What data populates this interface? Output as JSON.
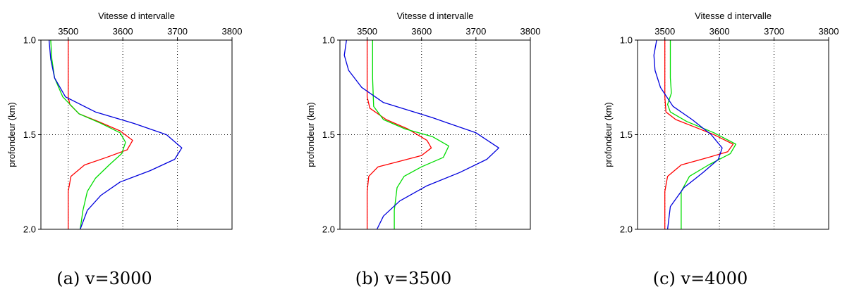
{
  "chart_data": [
    {
      "type": "line",
      "title": "Vitesse d intervalle",
      "ylabel": "profondeur (km)",
      "caption": "(a) v=3000",
      "xlim": [
        3450,
        3800
      ],
      "ylim": [
        1.0,
        2.0
      ],
      "x_ticks": [
        "3500",
        "3600",
        "3700",
        "3800"
      ],
      "y_ticks": [
        "1.0",
        "1.5",
        "2.0"
      ],
      "grid": "dotted",
      "series": [
        {
          "color": "#ff0000",
          "points": [
            [
              3500,
              1.0
            ],
            [
              3500,
              1.3
            ],
            [
              3503,
              1.34
            ],
            [
              3520,
              1.39
            ],
            [
              3555,
              1.43
            ],
            [
              3595,
              1.48
            ],
            [
              3618,
              1.53
            ],
            [
              3608,
              1.58
            ],
            [
              3570,
              1.62
            ],
            [
              3530,
              1.66
            ],
            [
              3505,
              1.72
            ],
            [
              3500,
              1.8
            ],
            [
              3500,
              2.0
            ]
          ]
        },
        {
          "color": "#00dd00",
          "points": [
            [
              3468,
              1.0
            ],
            [
              3470,
              1.1
            ],
            [
              3475,
              1.2
            ],
            [
              3490,
              1.3
            ],
            [
              3520,
              1.39
            ],
            [
              3560,
              1.44
            ],
            [
              3595,
              1.49
            ],
            [
              3605,
              1.54
            ],
            [
              3598,
              1.6
            ],
            [
              3575,
              1.66
            ],
            [
              3550,
              1.73
            ],
            [
              3535,
              1.8
            ],
            [
              3527,
              1.9
            ],
            [
              3522,
              2.0
            ]
          ]
        },
        {
          "color": "#0000dd",
          "points": [
            [
              3465,
              1.0
            ],
            [
              3468,
              1.1
            ],
            [
              3475,
              1.2
            ],
            [
              3495,
              1.3
            ],
            [
              3550,
              1.38
            ],
            [
              3620,
              1.44
            ],
            [
              3680,
              1.5
            ],
            [
              3708,
              1.57
            ],
            [
              3695,
              1.63
            ],
            [
              3650,
              1.69
            ],
            [
              3595,
              1.75
            ],
            [
              3560,
              1.82
            ],
            [
              3535,
              1.9
            ],
            [
              3522,
              2.0
            ]
          ]
        }
      ]
    },
    {
      "type": "line",
      "title": "Vitesse d intervalle",
      "ylabel": "profondeur (km)",
      "caption": "(b) v=3500",
      "xlim": [
        3450,
        3800
      ],
      "ylim": [
        1.0,
        2.0
      ],
      "x_ticks": [
        "3500",
        "3600",
        "3700",
        "3800"
      ],
      "y_ticks": [
        "1.0",
        "1.5",
        "2.0"
      ],
      "grid": "dotted",
      "series": [
        {
          "color": "#ff0000",
          "points": [
            [
              3500,
              1.0
            ],
            [
              3500,
              1.3
            ],
            [
              3505,
              1.36
            ],
            [
              3535,
              1.42
            ],
            [
              3575,
              1.47
            ],
            [
              3610,
              1.53
            ],
            [
              3618,
              1.57
            ],
            [
              3600,
              1.61
            ],
            [
              3560,
              1.64
            ],
            [
              3520,
              1.67
            ],
            [
              3503,
              1.72
            ],
            [
              3500,
              1.8
            ],
            [
              3500,
              2.0
            ]
          ]
        },
        {
          "color": "#00dd00",
          "points": [
            [
              3510,
              1.0
            ],
            [
              3510,
              1.2
            ],
            [
              3512,
              1.35
            ],
            [
              3530,
              1.42
            ],
            [
              3570,
              1.47
            ],
            [
              3620,
              1.51
            ],
            [
              3650,
              1.56
            ],
            [
              3640,
              1.62
            ],
            [
              3600,
              1.67
            ],
            [
              3568,
              1.72
            ],
            [
              3555,
              1.78
            ],
            [
              3550,
              1.9
            ],
            [
              3550,
              2.0
            ]
          ]
        },
        {
          "color": "#0000dd",
          "points": [
            [
              3462,
              1.0
            ],
            [
              3458,
              1.08
            ],
            [
              3466,
              1.16
            ],
            [
              3490,
              1.25
            ],
            [
              3530,
              1.33
            ],
            [
              3620,
              1.41
            ],
            [
              3700,
              1.49
            ],
            [
              3742,
              1.57
            ],
            [
              3720,
              1.63
            ],
            [
              3670,
              1.7
            ],
            [
              3610,
              1.77
            ],
            [
              3560,
              1.85
            ],
            [
              3530,
              1.93
            ],
            [
              3518,
              2.0
            ]
          ]
        }
      ]
    },
    {
      "type": "line",
      "title": "Vitesse d intervalle",
      "ylabel": "profondeur (km)",
      "caption": "(c) v=4000",
      "xlim": [
        3450,
        3800
      ],
      "ylim": [
        1.0,
        2.0
      ],
      "x_ticks": [
        "3500",
        "3600",
        "3700",
        "3800"
      ],
      "y_ticks": [
        "1.0",
        "1.5",
        "2.0"
      ],
      "grid": "dotted",
      "series": [
        {
          "color": "#ff0000",
          "points": [
            [
              3500,
              1.0
            ],
            [
              3500,
              1.3
            ],
            [
              3502,
              1.38
            ],
            [
              3520,
              1.42
            ],
            [
              3555,
              1.46
            ],
            [
              3590,
              1.5
            ],
            [
              3625,
              1.55
            ],
            [
              3615,
              1.59
            ],
            [
              3580,
              1.62
            ],
            [
              3530,
              1.66
            ],
            [
              3505,
              1.72
            ],
            [
              3500,
              1.8
            ],
            [
              3500,
              2.0
            ]
          ]
        },
        {
          "color": "#00dd00",
          "points": [
            [
              3510,
              1.0
            ],
            [
              3510,
              1.2
            ],
            [
              3512,
              1.28
            ],
            [
              3505,
              1.34
            ],
            [
              3510,
              1.38
            ],
            [
              3540,
              1.43
            ],
            [
              3590,
              1.49
            ],
            [
              3630,
              1.55
            ],
            [
              3620,
              1.6
            ],
            [
              3580,
              1.66
            ],
            [
              3545,
              1.72
            ],
            [
              3530,
              1.8
            ],
            [
              3530,
              2.0
            ]
          ]
        },
        {
          "color": "#0000dd",
          "points": [
            [
              3485,
              1.0
            ],
            [
              3480,
              1.08
            ],
            [
              3482,
              1.16
            ],
            [
              3492,
              1.25
            ],
            [
              3515,
              1.35
            ],
            [
              3550,
              1.42
            ],
            [
              3585,
              1.5
            ],
            [
              3605,
              1.57
            ],
            [
              3598,
              1.63
            ],
            [
              3570,
              1.7
            ],
            [
              3535,
              1.78
            ],
            [
              3510,
              1.88
            ],
            [
              3505,
              2.0
            ]
          ]
        }
      ]
    }
  ]
}
